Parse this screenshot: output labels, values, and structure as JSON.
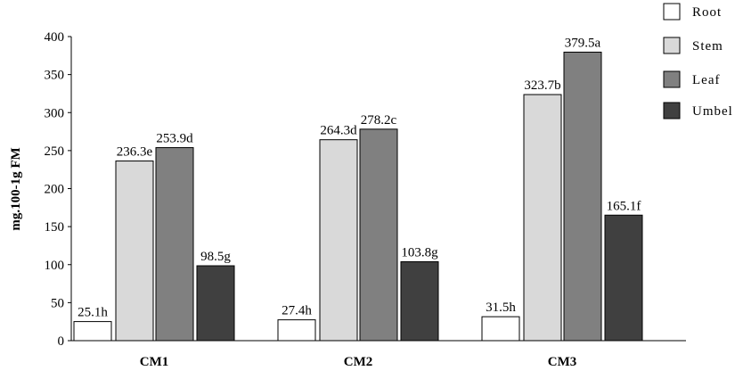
{
  "chart_data": {
    "type": "bar",
    "title": "",
    "xlabel": "",
    "ylabel": "mg.100-1g FM",
    "ylim": [
      0,
      400
    ],
    "yticks": [
      0,
      50,
      100,
      150,
      200,
      250,
      300,
      350,
      400
    ],
    "categories": [
      "CM1",
      "CM2",
      "CM3"
    ],
    "legend_position": "top-right",
    "series": [
      {
        "name": "Root",
        "color": "#ffffff",
        "values": [
          25.1,
          27.4,
          31.5
        ],
        "labels": [
          "25.1h",
          "27.4h",
          "31.5h"
        ]
      },
      {
        "name": "Stem",
        "color": "#d9d9d9",
        "values": [
          236.3,
          264.3,
          323.7
        ],
        "labels": [
          "236.3e",
          "264.3d",
          "323.7b"
        ]
      },
      {
        "name": "Leaf",
        "color": "#808080",
        "values": [
          253.9,
          278.2,
          379.5
        ],
        "labels": [
          "253.9d",
          "278.2c",
          "379.5a"
        ]
      },
      {
        "name": "Umbel",
        "color": "#404040",
        "values": [
          98.5,
          103.8,
          165.1
        ],
        "labels": [
          "98.5g",
          "103.8g",
          "165.1f"
        ]
      }
    ]
  }
}
